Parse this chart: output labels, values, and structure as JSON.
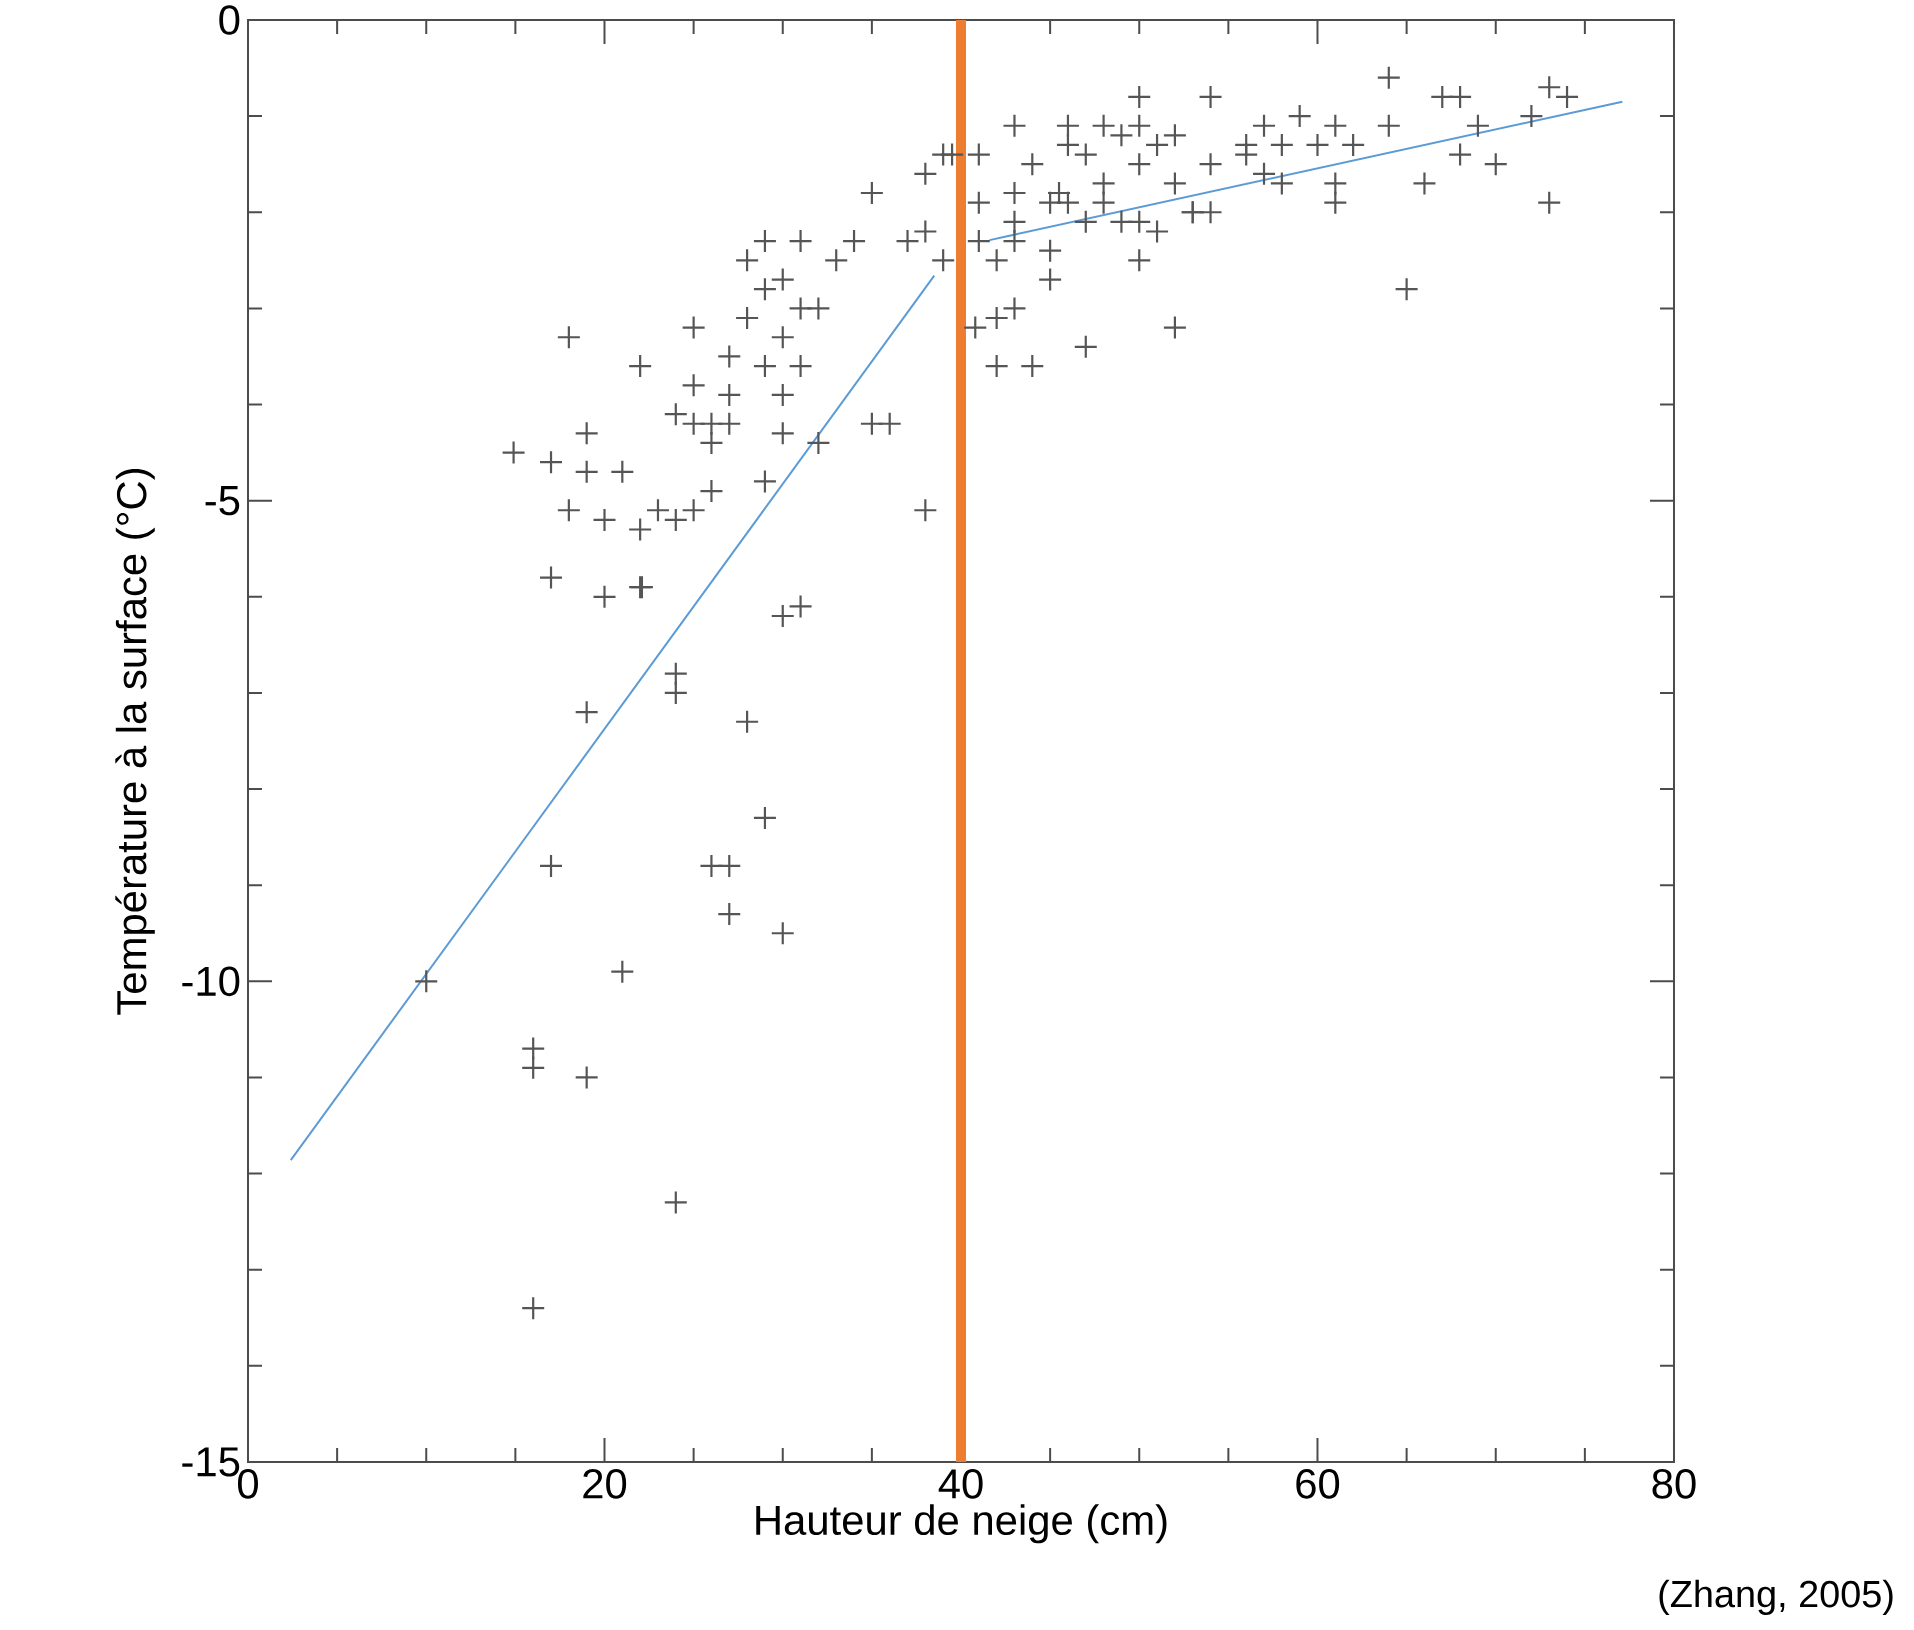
{
  "chart_data": {
    "type": "scatter",
    "xlabel": "Hauteur de neige (cm)",
    "ylabel": "Température à la surface (°C)",
    "annotations": [
      "(Zhang, 2005)"
    ],
    "xlim": [
      0,
      80
    ],
    "ylim": [
      -15,
      0
    ],
    "xticks": [
      0,
      {
        "value": 5,
        "label": null
      },
      {
        "value": 10,
        "label": null
      },
      {
        "value": 15,
        "label": null
      },
      20,
      {
        "value": 25,
        "label": null
      },
      {
        "value": 30,
        "label": null
      },
      {
        "value": 35,
        "label": null
      },
      40,
      {
        "value": 45,
        "label": null
      },
      {
        "value": 50,
        "label": null
      },
      {
        "value": 55,
        "label": null
      },
      60,
      {
        "value": 65,
        "label": null
      },
      {
        "value": 70,
        "label": null
      },
      {
        "value": 75,
        "label": null
      },
      80
    ],
    "yticks": [
      -15,
      {
        "value": -14,
        "label": null
      },
      {
        "value": -13,
        "label": null
      },
      {
        "value": -12,
        "label": null
      },
      {
        "value": -11,
        "label": null
      },
      -10,
      {
        "value": -9,
        "label": null
      },
      {
        "value": -8,
        "label": null
      },
      {
        "value": -7,
        "label": null
      },
      {
        "value": -6,
        "label": null
      },
      -5,
      {
        "value": -4,
        "label": null
      },
      {
        "value": -3,
        "label": null
      },
      {
        "value": -2,
        "label": null
      },
      {
        "value": -1,
        "label": null
      },
      0
    ],
    "grid": false,
    "marker": "cross",
    "ref_lines": [
      {
        "axis": "x",
        "value": 40,
        "label": null,
        "color": "#ed7d31"
      }
    ],
    "series": [
      {
        "color": "#555555",
        "x": [
          14.9,
          17,
          18,
          19,
          17,
          18,
          19,
          20,
          20,
          21,
          22,
          22,
          22,
          23,
          24,
          24,
          25,
          25,
          25,
          26,
          26,
          27,
          27,
          28,
          29,
          29,
          29,
          30,
          30,
          30,
          31,
          31,
          31,
          32,
          32,
          33,
          34,
          35,
          35,
          36,
          37,
          38,
          39,
          38,
          39,
          39.5,
          30,
          29,
          28,
          26,
          27,
          25,
          22.1,
          30,
          31,
          24,
          24,
          19,
          28,
          29,
          26,
          27,
          17,
          27,
          30,
          10,
          21,
          16,
          16,
          19,
          24,
          16,
          38,
          40.8,
          42,
          43,
          42,
          44,
          47,
          52,
          65,
          73,
          66,
          43,
          50,
          54,
          64,
          67,
          68,
          73,
          74,
          72,
          69,
          70,
          68,
          64,
          62,
          61,
          59,
          57,
          58,
          56,
          60,
          61,
          61,
          57,
          54,
          54,
          53,
          52,
          52,
          51,
          50,
          50,
          50,
          50,
          49,
          48,
          48,
          47,
          46,
          46,
          45.5,
          45,
          45,
          44,
          43,
          43,
          41,
          41,
          41,
          42,
          43,
          47,
          49,
          51,
          53,
          56,
          58,
          48,
          45,
          46
        ],
        "values": [
          -4.5,
          -4.6,
          -3.3,
          -4.3,
          -5.8,
          -5.1,
          -4.7,
          -5.2,
          -6.0,
          -4.7,
          -5.3,
          -5.9,
          -3.6,
          -5.1,
          -5.2,
          -4.1,
          -4.2,
          -3.8,
          -3.2,
          -4.9,
          -4.4,
          -3.9,
          -3.5,
          -2.5,
          -2.8,
          -3.6,
          -4.8,
          -4.3,
          -3.3,
          -3.9,
          -3.6,
          -3.0,
          -2.3,
          -3.0,
          -4.4,
          -2.5,
          -2.3,
          -1.8,
          -4.2,
          -4.2,
          -2.3,
          -2.2,
          -2.5,
          -1.6,
          -1.4,
          -1.4,
          -2.7,
          -2.3,
          -3.1,
          -4.2,
          -4.2,
          -5.1,
          -5.9,
          -6.2,
          -6.1,
          -6.8,
          -7.0,
          -7.2,
          -7.3,
          -8.3,
          -8.8,
          -8.8,
          -8.8,
          -9.3,
          -9.5,
          -10.0,
          -9.9,
          -10.7,
          -10.9,
          -11.0,
          -12.3,
          -13.4,
          -5.1,
          -3.2,
          -3.1,
          -3.0,
          -3.6,
          -3.6,
          -3.4,
          -3.2,
          -2.8,
          -1.9,
          -1.7,
          -1.1,
          -0.8,
          -0.8,
          -0.6,
          -0.8,
          -0.8,
          -0.7,
          -0.8,
          -1.0,
          -1.1,
          -1.5,
          -1.4,
          -1.1,
          -1.3,
          -1.1,
          -1.0,
          -1.1,
          -1.3,
          -1.3,
          -1.3,
          -1.7,
          -1.9,
          -1.6,
          -1.5,
          -2.0,
          -2.0,
          -1.7,
          -1.2,
          -1.3,
          -1.1,
          -1.5,
          -2.1,
          -2.5,
          -1.2,
          -1.1,
          -1.7,
          -1.4,
          -1.1,
          -1.3,
          -1.8,
          -2.4,
          -2.7,
          -1.5,
          -1.8,
          -2.1,
          -1.4,
          -1.9,
          -2.3,
          -2.5,
          -2.3,
          -2.1,
          -2.1,
          -2.2,
          -2.0,
          -1.4,
          -1.7,
          -1.9,
          -1.9,
          -1.9
        ]
      },
      {
        "type": "line",
        "color": "#5b9bd5",
        "marker": "none",
        "x": [
          2.4,
          38.5
        ],
        "values": [
          -11.86,
          -2.66
        ]
      },
      {
        "type": "line",
        "color": "#5b9bd5",
        "marker": "none",
        "x": [
          41.6,
          77.1
        ],
        "values": [
          -2.29,
          -0.85
        ]
      }
    ]
  }
}
